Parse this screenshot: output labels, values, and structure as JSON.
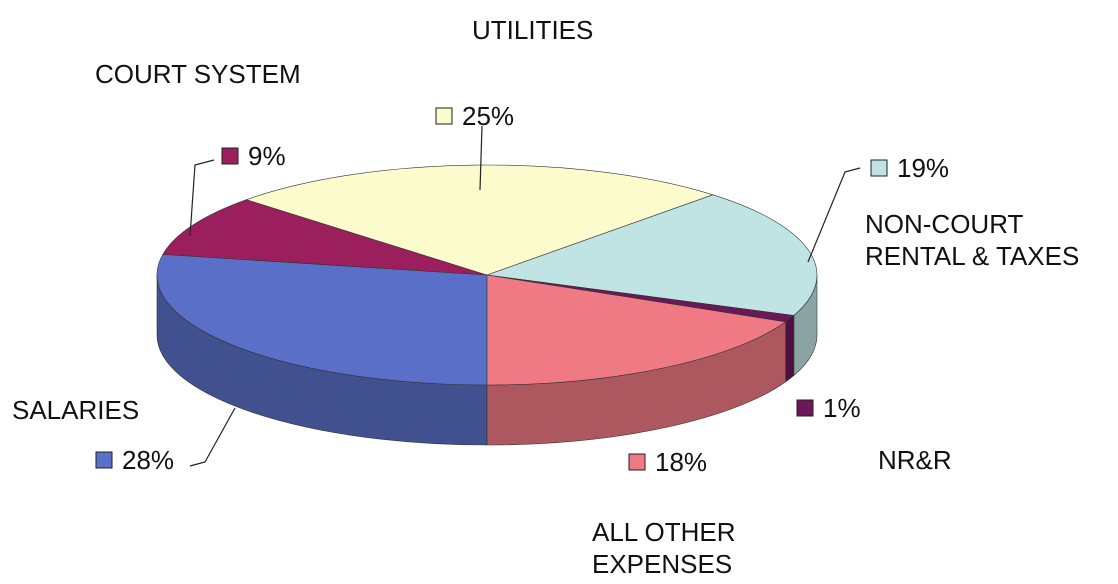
{
  "chart_data": {
    "type": "pie3d",
    "categories": [
      "SALARIES",
      "COURT SYSTEM",
      "UTILITIES",
      "NON-COURT RENTAL & TAXES",
      "NR&R",
      "ALL OTHER EXPENSES"
    ],
    "values": [
      28,
      9,
      25,
      19,
      1,
      18
    ],
    "value_labels": [
      "28%",
      "9%",
      "25%",
      "19%",
      "1%",
      "18%"
    ],
    "colors": [
      "#5a70c8",
      "#9a1f5c",
      "#fbfbcc",
      "#bfe4e3",
      "#6a1858",
      "#f07a84"
    ]
  }
}
